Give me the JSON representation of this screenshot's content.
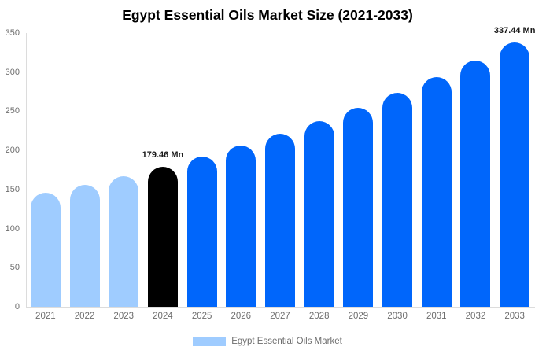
{
  "chart_data": {
    "type": "bar",
    "title": "Egypt Essential Oils Market Size (2021-2033)",
    "xlabel": "",
    "ylabel": "",
    "categories": [
      "2021",
      "2022",
      "2023",
      "2024",
      "2025",
      "2026",
      "2027",
      "2028",
      "2029",
      "2030",
      "2031",
      "2032",
      "2033"
    ],
    "values": [
      145.4,
      156.0,
      167.3,
      179.46,
      192.5,
      206.5,
      221.5,
      237.6,
      254.9,
      273.4,
      293.3,
      314.6,
      337.44
    ],
    "ylim": [
      0,
      350
    ],
    "yticks": [
      0,
      50,
      100,
      150,
      200,
      250,
      300,
      350
    ],
    "grid": false,
    "legend": [
      "Egypt Essential Oils Market"
    ],
    "legend_position": "bottom",
    "annotations": [
      {
        "index": 3,
        "text": "179.46 Mn"
      },
      {
        "index": 12,
        "text": "337.44 Mn"
      }
    ],
    "bar_colors": [
      "#9FCCFF",
      "#9FCCFF",
      "#9FCCFF",
      "#000000",
      "#0066FB",
      "#0066FB",
      "#0066FB",
      "#0066FB",
      "#0066FB",
      "#0066FB",
      "#0066FB",
      "#0066FB",
      "#0066FB"
    ],
    "colors": {
      "historical_bar": "#9FCCFF",
      "highlight_bar": "#000000",
      "forecast_bar": "#0066FB",
      "legend_swatch": "#9FCCFF",
      "axis_line": "#DCDCDC",
      "tick_text": "#6E6E6E",
      "annotation_text": "#1A1A1A",
      "title_text": "#000000"
    }
  }
}
